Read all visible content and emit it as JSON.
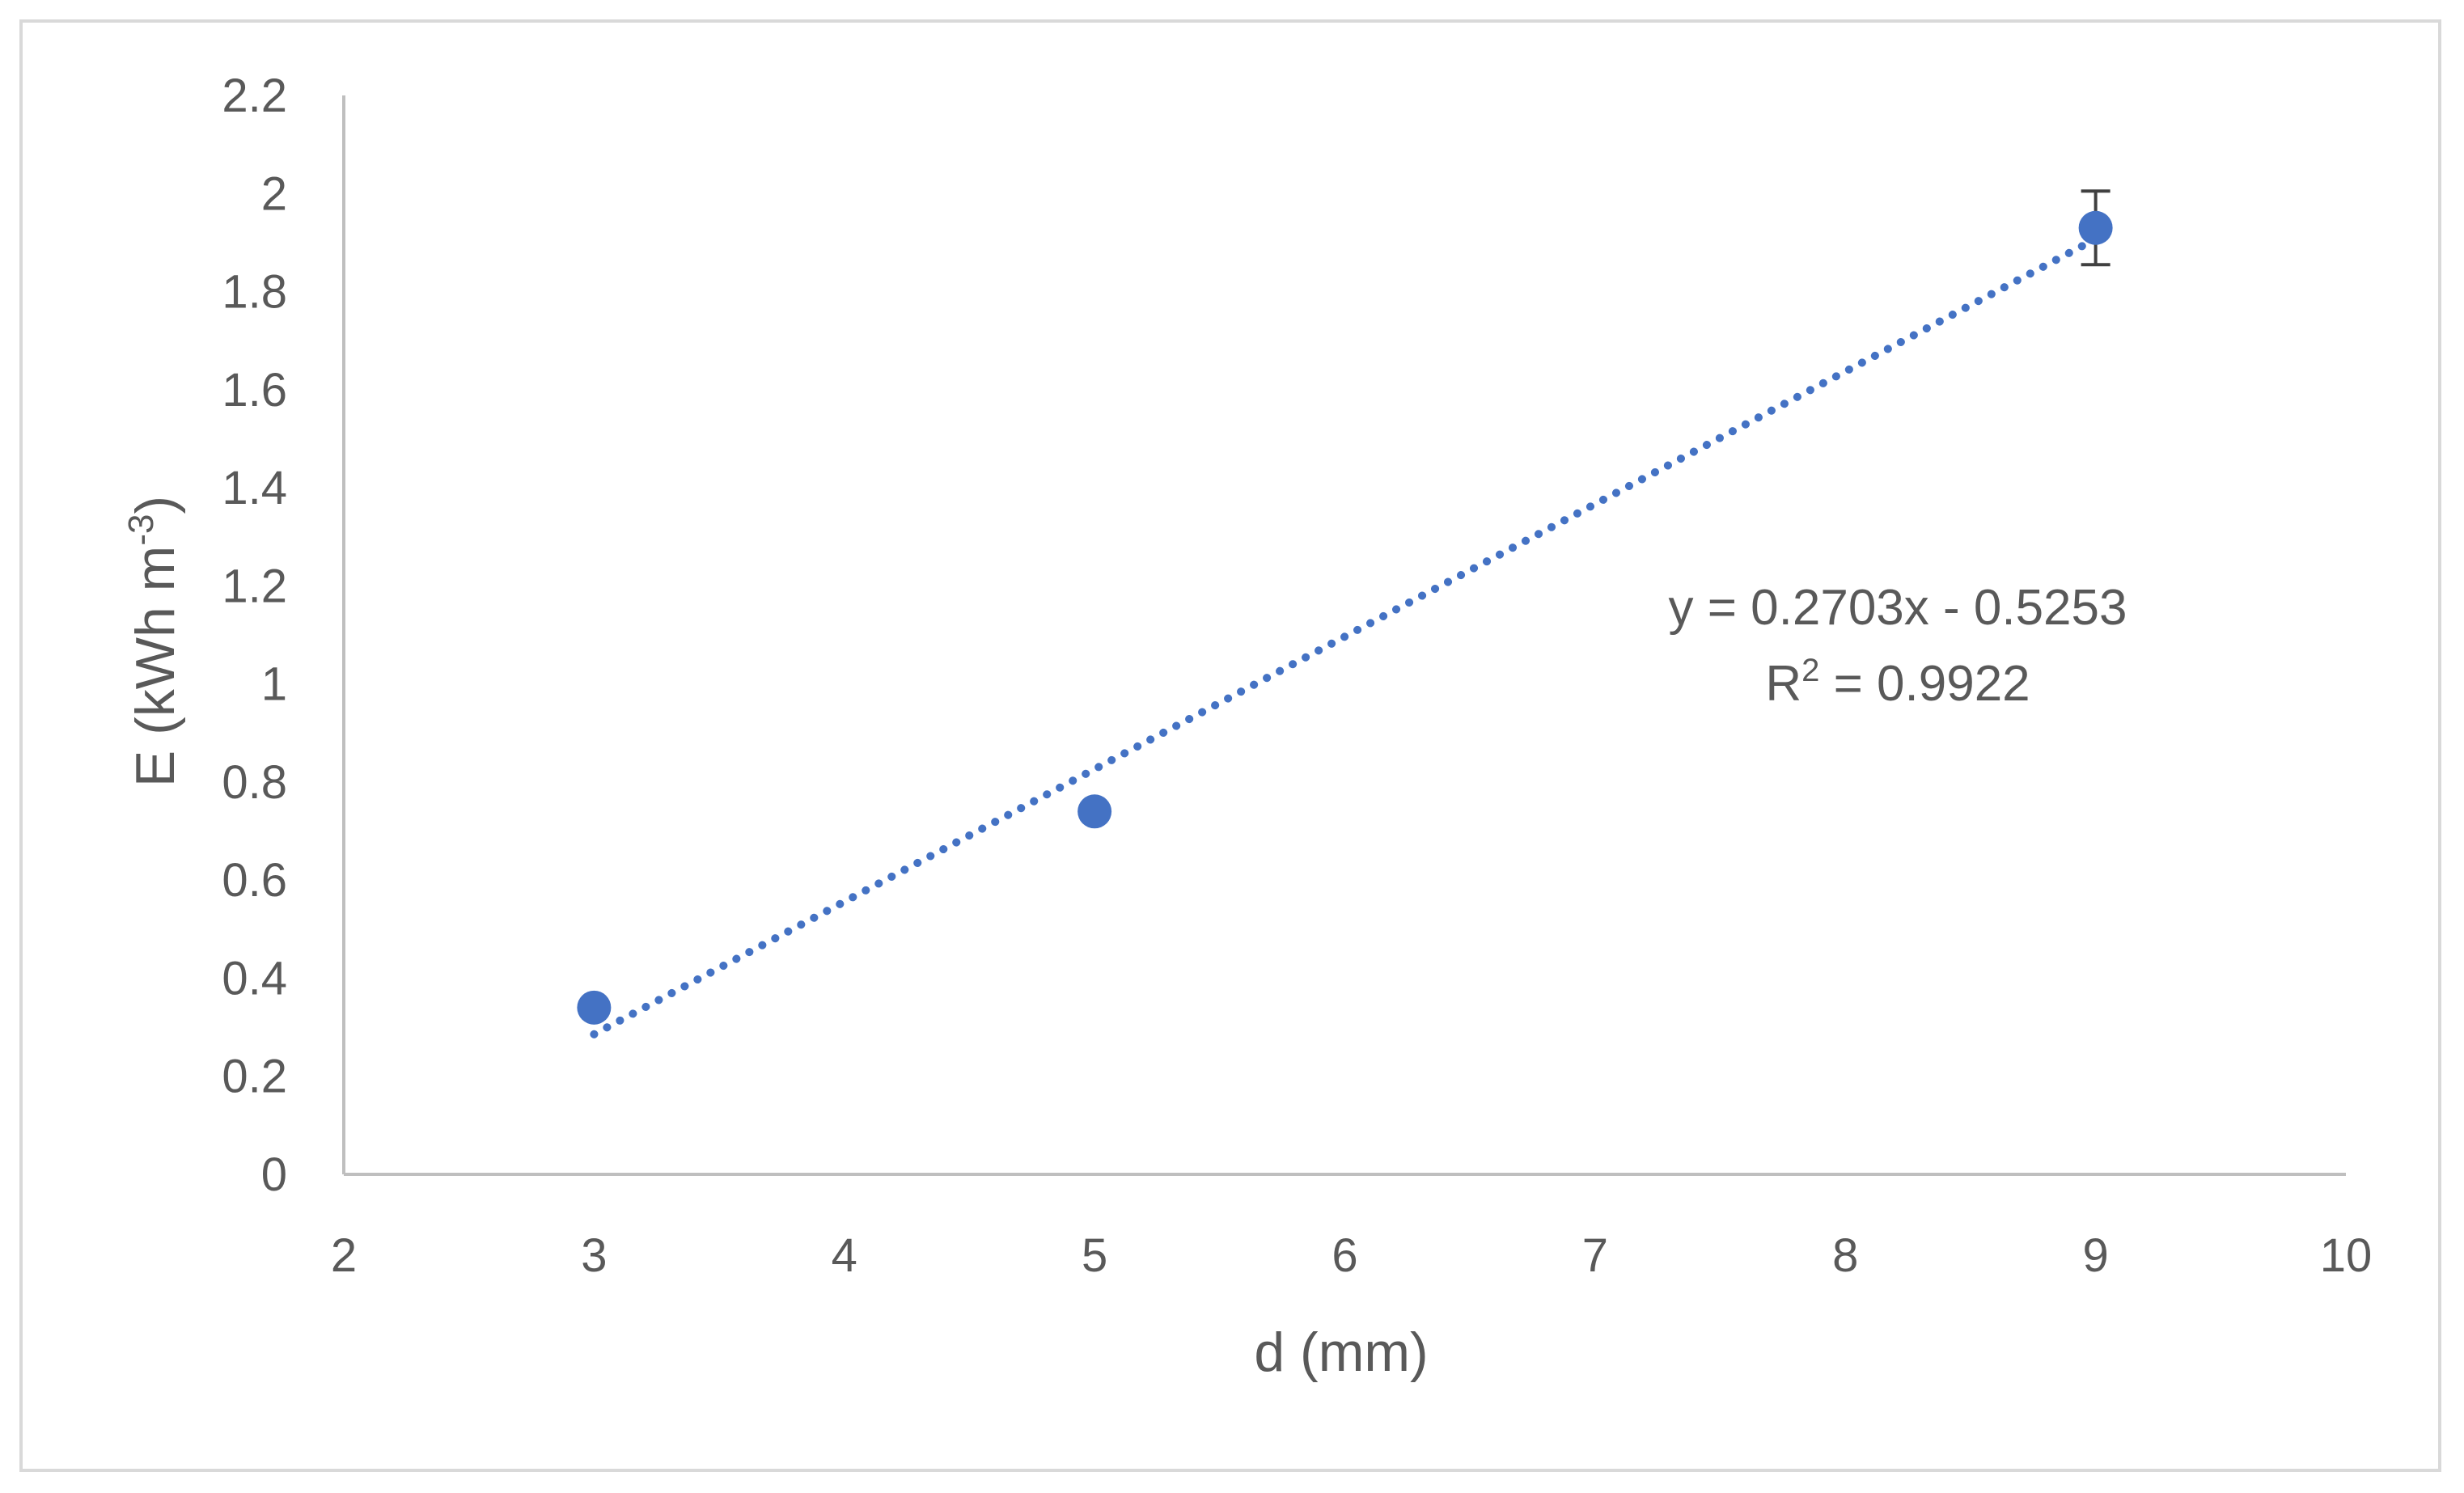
{
  "chart_data": {
    "type": "scatter",
    "x": [
      3,
      5,
      9
    ],
    "y": [
      0.34,
      0.74,
      1.93
    ],
    "error_bars": [
      0,
      0,
      0.075
    ],
    "xlim": [
      2,
      10
    ],
    "ylim": [
      0,
      2.2
    ],
    "xticks": [
      "2",
      "3",
      "4",
      "5",
      "6",
      "7",
      "8",
      "9",
      "10"
    ],
    "yticks": [
      "0",
      "0.2",
      "0.4",
      "0.6",
      "0.8",
      "1",
      "1.2",
      "1.4",
      "1.6",
      "1.8",
      "2",
      "2.2"
    ],
    "xlabel": "d (mm)",
    "ylabel": {
      "base": "E (kWh m",
      "sup": "-3",
      "close": ")"
    },
    "trendline": {
      "type": "linear",
      "slope": 0.2703,
      "intercept": -0.5253,
      "equation": "y = 0.2703x - 0.5253",
      "r2_label": {
        "base": "R",
        "sup": "2",
        "rest": " = 0.9922"
      }
    },
    "grid": false,
    "colors": {
      "marker": "#4472c4",
      "trendline": "#4472c4",
      "axis": "#bfbfbf",
      "text": "#595959",
      "error_bar": "#404040"
    }
  }
}
